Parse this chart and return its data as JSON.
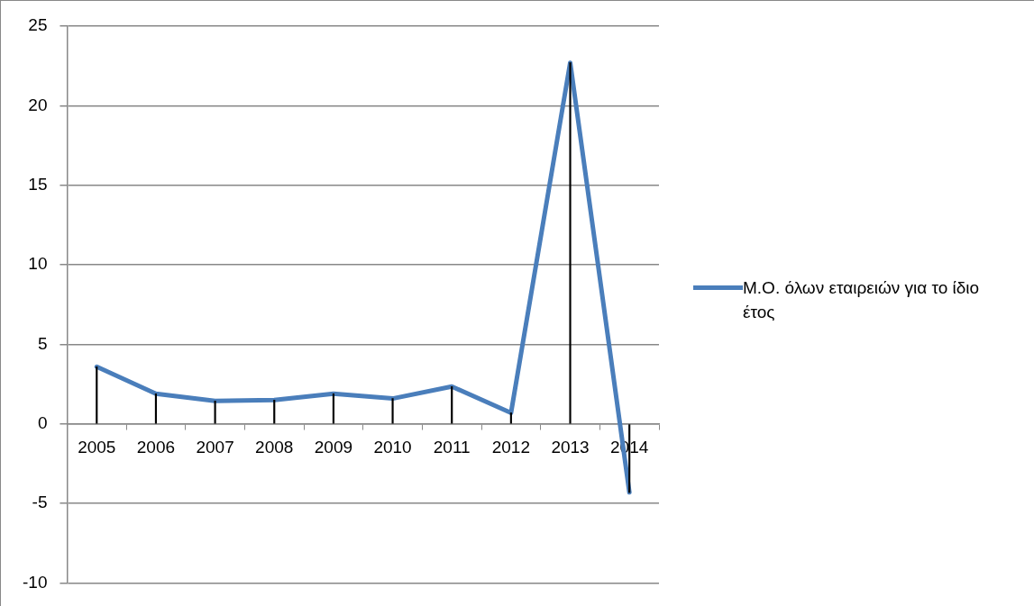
{
  "chart_data": {
    "type": "line",
    "categories": [
      "2005",
      "2006",
      "2007",
      "2008",
      "2009",
      "2010",
      "2011",
      "2012",
      "2013",
      "2014"
    ],
    "series": [
      {
        "type": "bar",
        "color": "#000000",
        "values": [
          3.6,
          1.9,
          1.45,
          1.5,
          1.9,
          1.6,
          2.35,
          0.7,
          22.7,
          -4.3
        ]
      },
      {
        "name": "Μ.Ο. όλων εταιρειών για το ίδιο έτος",
        "color": "#4a7ebb",
        "values": [
          3.6,
          1.9,
          1.45,
          1.5,
          1.9,
          1.6,
          2.35,
          0.7,
          22.7,
          -4.3
        ]
      }
    ],
    "ylim": [
      -10,
      25
    ],
    "yticks": [
      -10,
      -5,
      0,
      5,
      10,
      15,
      20,
      25
    ],
    "grid": "y",
    "legend": "right",
    "marker": "none",
    "line_style": "solid"
  }
}
